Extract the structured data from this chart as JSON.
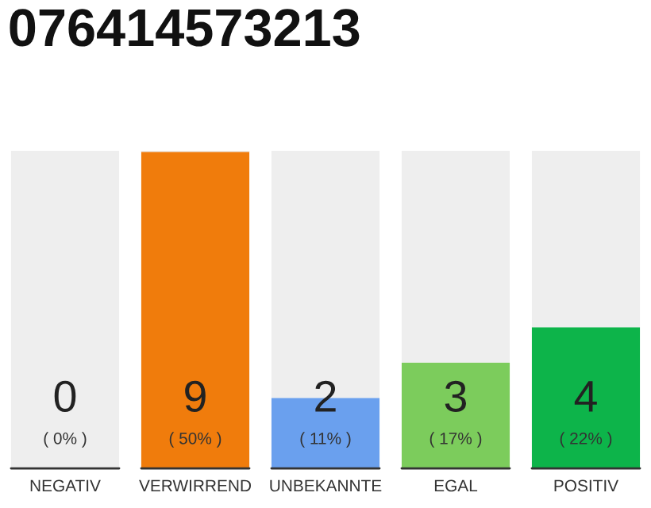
{
  "chart_data": {
    "type": "bar",
    "title": "076414573213",
    "stacked": true,
    "categories": [
      "NEGATIV",
      "VERWIRREND",
      "UNBEKANNTE",
      "EGAL",
      "POSITIV"
    ],
    "series": [
      {
        "colors": [
          "#333333",
          "#f07c0c",
          "#6aa0ee",
          "#7ccc5c",
          "#0db44a"
        ],
        "values": [
          0,
          9,
          2,
          3,
          4
        ],
        "value_labels": [
          "0",
          "9",
          "2",
          "3",
          "4"
        ]
      },
      {
        "color": "#eeeeee",
        "values": [
          9,
          0,
          7,
          6,
          5
        ]
      }
    ],
    "annotations": [
      "( 0% )",
      "( 50% )",
      "( 11% )",
      "( 17% )",
      "( 22% )"
    ]
  }
}
